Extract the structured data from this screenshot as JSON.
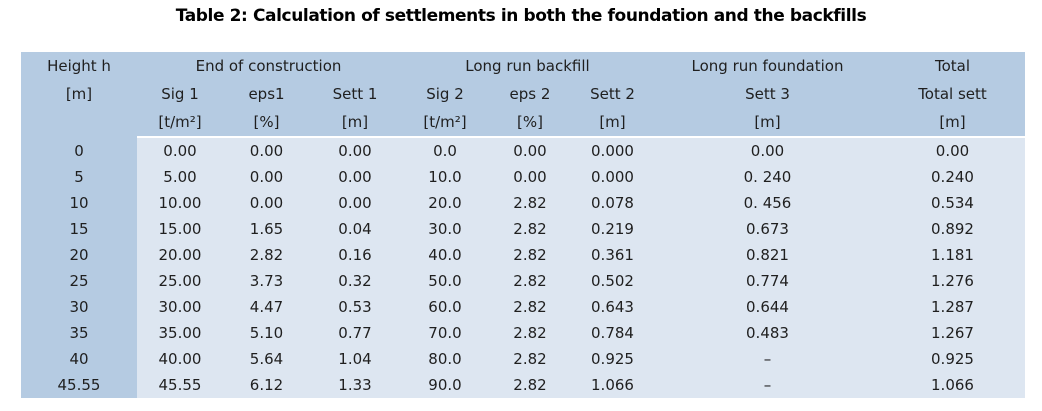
{
  "caption": "Table 2: Calculation of settlements in both the foundation and the backfills",
  "colors": {
    "header_bg": "#b5cbe2",
    "body_bg": "#dde6f1",
    "text": "#1f1f1f",
    "page_bg": "#ffffff"
  },
  "table": {
    "group_headers": [
      {
        "label": "Height h",
        "span": 1
      },
      {
        "label": "End of construction",
        "span": 3
      },
      {
        "label": "Long run backfill",
        "span": 3
      },
      {
        "label": "Long run foundation",
        "span": 1
      },
      {
        "label": "Total",
        "span": 1
      }
    ],
    "sub_headers": [
      "[m]",
      "Sig 1",
      "eps1",
      "Sett 1",
      "Sig 2",
      "eps 2",
      "Sett 2",
      "Sett 3",
      "Total sett"
    ],
    "units": [
      "",
      "[t/m²]",
      "[%]",
      "[m]",
      "[t/m²]",
      "[%]",
      "[m]",
      "[m]",
      "[m]"
    ],
    "rows": [
      [
        "0",
        "0.00",
        "0.00",
        "0.00",
        "0.0",
        "0.00",
        "0.000",
        "0.00",
        "0.00"
      ],
      [
        "5",
        "5.00",
        "0.00",
        "0.00",
        "10.0",
        "0.00",
        "0.000",
        "0. 240",
        "0.240"
      ],
      [
        "10",
        "10.00",
        "0.00",
        "0.00",
        "20.0",
        "2.82",
        "0.078",
        "0. 456",
        "0.534"
      ],
      [
        "15",
        "15.00",
        "1.65",
        "0.04",
        "30.0",
        "2.82",
        "0.219",
        "0.673",
        "0.892"
      ],
      [
        "20",
        "20.00",
        "2.82",
        "0.16",
        "40.0",
        "2.82",
        "0.361",
        "0.821",
        "1.181"
      ],
      [
        "25",
        "25.00",
        "3.73",
        "0.32",
        "50.0",
        "2.82",
        "0.502",
        "0.774",
        "1.276"
      ],
      [
        "30",
        "30.00",
        "4.47",
        "0.53",
        "60.0",
        "2.82",
        "0.643",
        "0.644",
        "1.287"
      ],
      [
        "35",
        "35.00",
        "5.10",
        "0.77",
        "70.0",
        "2.82",
        "0.784",
        "0.483",
        "1.267"
      ],
      [
        "40",
        "40.00",
        "5.64",
        "1.04",
        "80.0",
        "2.82",
        "0.925",
        "–",
        "0.925"
      ],
      [
        "45.55",
        "45.55",
        "6.12",
        "1.33",
        "90.0",
        "2.82",
        "1.066",
        "–",
        "1.066"
      ]
    ]
  }
}
